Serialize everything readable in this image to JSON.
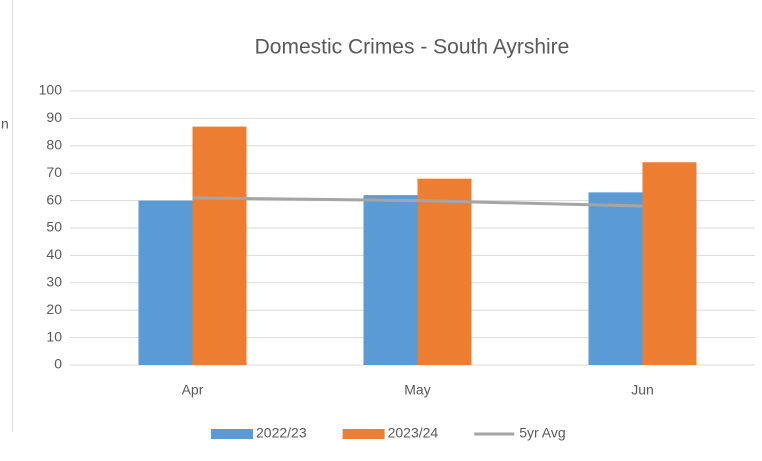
{
  "fragment": "n",
  "chart_data": {
    "type": "bar",
    "title": "Domestic Crimes - South Ayrshire",
    "categories": [
      "Apr",
      "May",
      "Jun"
    ],
    "series": [
      {
        "name": "2022/23",
        "color": "#5b9bd5",
        "values": [
          60,
          62,
          63
        ]
      },
      {
        "name": "2023/24",
        "color": "#ed7d31",
        "values": [
          87,
          68,
          74
        ]
      },
      {
        "name": "5yr Avg",
        "color": "#a5a5a5",
        "type": "line",
        "values": [
          61,
          60,
          58
        ]
      }
    ],
    "ylim": [
      0,
      100
    ],
    "yticks": [
      0,
      10,
      20,
      30,
      40,
      50,
      60,
      70,
      80,
      90,
      100
    ],
    "grid": true,
    "legend": "bottom"
  }
}
